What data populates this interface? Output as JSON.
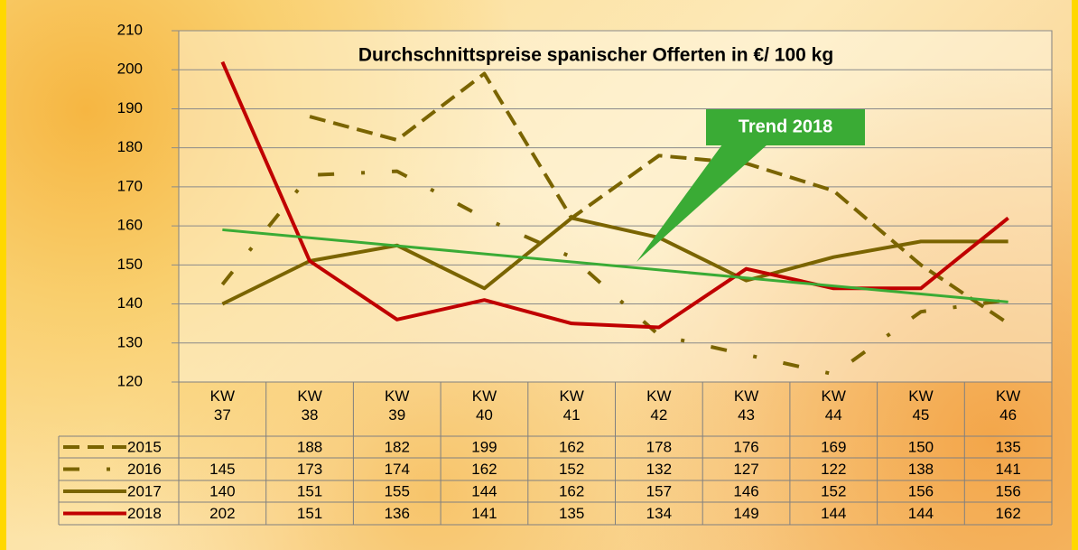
{
  "chart_data": {
    "type": "line",
    "title": "Durchschnittspreise spanischer Offerten in €/ 100 kg",
    "categories": [
      "KW 37",
      "KW 38",
      "KW 39",
      "KW 40",
      "KW 41",
      "KW 42",
      "KW 43",
      "KW 44",
      "KW 45",
      "KW 46"
    ],
    "series": [
      {
        "name": "2015",
        "color": "#7a6400",
        "dash": "dashed",
        "values": [
          null,
          188,
          182,
          199,
          162,
          178,
          176,
          169,
          150,
          135
        ]
      },
      {
        "name": "2016",
        "color": "#7a6400",
        "dash": "dashdot",
        "values": [
          145,
          173,
          174,
          162,
          152,
          132,
          127,
          122,
          138,
          141
        ]
      },
      {
        "name": "2017",
        "color": "#7a6400",
        "dash": "solid",
        "values": [
          140,
          151,
          155,
          144,
          162,
          157,
          146,
          152,
          156,
          156
        ]
      },
      {
        "name": "2018",
        "color": "#c00000",
        "dash": "solid",
        "values": [
          202,
          151,
          136,
          141,
          135,
          134,
          149,
          144,
          144,
          162
        ]
      }
    ],
    "trend": {
      "label": "Trend 2018",
      "color": "#3aab35",
      "values": [
        159,
        140.5
      ]
    },
    "ylim": [
      120,
      210
    ],
    "yticks": [
      120,
      130,
      140,
      150,
      160,
      170,
      180,
      190,
      200,
      210
    ],
    "grid": true,
    "data_table": true
  }
}
